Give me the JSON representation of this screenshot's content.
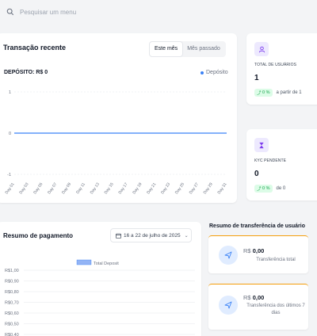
{
  "search": {
    "placeholder": "Pesquisar um menu"
  },
  "transactions": {
    "title": "Transação recente",
    "tabs": [
      {
        "label": "Este mês",
        "active": true
      },
      {
        "label": "Mês passado",
        "active": false
      }
    ],
    "deposit_label": "DEPÓSITO: R$ 0",
    "legend_label": "Depósito",
    "legend_color": "#3b82f6"
  },
  "stats": [
    {
      "icon": "user-icon",
      "caption": "TOTAL DE USUÁRIOS",
      "value": "1",
      "change": "0 %",
      "change_text": "a partir de 1"
    },
    {
      "icon": "hourglass-icon",
      "caption": "KYC PENDENTE",
      "value": "0",
      "change": "0 %",
      "change_text": "de 0"
    }
  ],
  "payment": {
    "title": "Resumo de pagamento",
    "date_range": "16 a 22 de julho de 2025",
    "legend_label": "Total Deposit"
  },
  "transfer": {
    "title": "Resumo de transferência de usuário",
    "items": [
      {
        "amount_prefix": "R$",
        "amount": "0,00",
        "label": "Transferência total"
      },
      {
        "amount_prefix": "R$",
        "amount": "0,00",
        "label": "Transferência dos últimos 7 dias"
      }
    ],
    "accent": "#f59e0b"
  },
  "chart_data": [
    {
      "type": "line",
      "categories": [
        "Day 01",
        "Day 03",
        "Day 05",
        "Day 07",
        "Day 09",
        "Day 11",
        "Day 13",
        "Day 15",
        "Day 17",
        "Day 19",
        "Day 21",
        "Day 23",
        "Day 25",
        "Day 27",
        "Day 29",
        "Day 31"
      ],
      "series": [
        {
          "name": "Depósito",
          "values": [
            0,
            0,
            0,
            0,
            0,
            0,
            0,
            0,
            0,
            0,
            0,
            0,
            0,
            0,
            0,
            0
          ]
        }
      ],
      "ylim": [
        -1,
        1
      ],
      "y_ticks": [
        "1",
        "0",
        "-1"
      ],
      "grid": true
    },
    {
      "type": "bar",
      "series": [
        {
          "name": "Total Deposit",
          "values": []
        }
      ],
      "y_ticks": [
        "R$1,00",
        "R$0,90",
        "R$0,80",
        "R$0,70",
        "R$0,60",
        "R$0,50",
        "R$0,40"
      ],
      "grid": true
    }
  ]
}
